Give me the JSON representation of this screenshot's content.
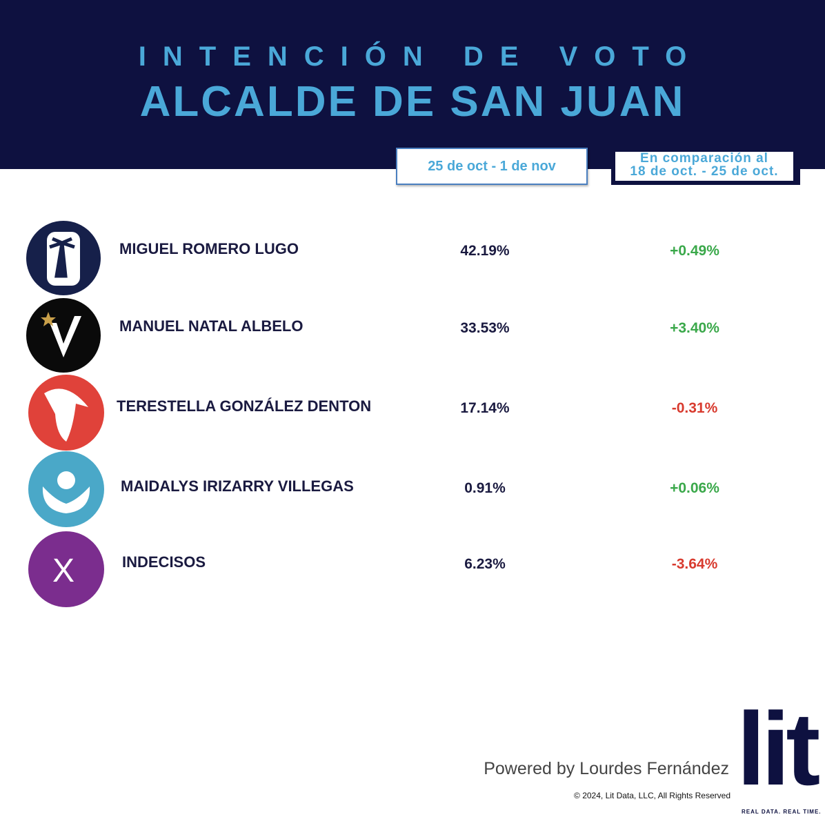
{
  "header": {
    "title_line1": "INTENCIÓN DE VOTO",
    "title_line2": "ALCALDE DE SAN JUAN"
  },
  "columns": {
    "current": "25 de oct - 1 de nov",
    "comparison": [
      "En comparación al",
      "18 de oct. - 25 de oct."
    ]
  },
  "rows": [
    {
      "name": "MIGUEL ROMERO LUGO",
      "value": "42.19%",
      "change": "+0.49%"
    },
    {
      "name": "MANUEL NATAL ALBELO",
      "value": "33.53%",
      "change": "+3.40%"
    },
    {
      "name": "TERESTELLA GONZÁLEZ DENTON",
      "value": "17.14%",
      "change": "-0.31%"
    },
    {
      "name": "MAIDALYS IRIZARRY VILLEGAS",
      "value": "0.91%",
      "change": "+0.06%"
    },
    {
      "name": "INDECISOS",
      "value": "6.23%",
      "change": "-3.64%",
      "icon_text": "X"
    }
  ],
  "footer": {
    "powered": "Powered by Lourdes Fernández",
    "copyright": "© 2024, Lit Data, LLC, All Rights Reserved",
    "logo": "lit",
    "tagline": "REAL DATA. REAL TIME."
  }
}
